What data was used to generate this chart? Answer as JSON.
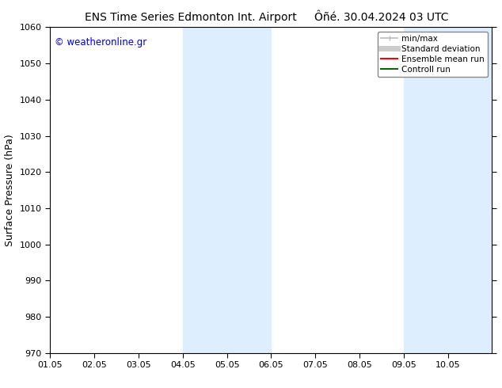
{
  "title_left": "ENS Time Series Edmonton Int. Airport",
  "title_right": "Ôñé. 30.04.2024 03 UTC",
  "ylabel": "Surface Pressure (hPa)",
  "ylim": [
    970,
    1060
  ],
  "yticks": [
    970,
    980,
    990,
    1000,
    1010,
    1020,
    1030,
    1040,
    1050,
    1060
  ],
  "xlim_start": 0,
  "xlim_end": 10,
  "xtick_labels": [
    "01.05",
    "02.05",
    "03.05",
    "04.05",
    "05.05",
    "06.05",
    "07.05",
    "08.05",
    "09.05",
    "10.05"
  ],
  "xtick_positions": [
    0,
    1,
    2,
    3,
    4,
    5,
    6,
    7,
    8,
    9
  ],
  "shaded_bands": [
    {
      "x_start": 3,
      "x_end": 5,
      "color": "#ddeeff"
    },
    {
      "x_start": 8,
      "x_end": 10,
      "color": "#ddeeff"
    }
  ],
  "watermark": "© weatheronline.gr",
  "watermark_color": "#0000cc",
  "legend_items": [
    {
      "label": "min/max",
      "color": "#bbbbbb",
      "lw": 1.2
    },
    {
      "label": "Standard deviation",
      "color": "#cccccc",
      "lw": 5
    },
    {
      "label": "Ensemble mean run",
      "color": "#ff0000",
      "lw": 1.5
    },
    {
      "label": "Controll run",
      "color": "#006600",
      "lw": 1.5
    }
  ],
  "bg_color": "#ffffff",
  "spine_color": "#000000",
  "tick_fontsize": 8,
  "label_fontsize": 9,
  "title_fontsize": 10
}
